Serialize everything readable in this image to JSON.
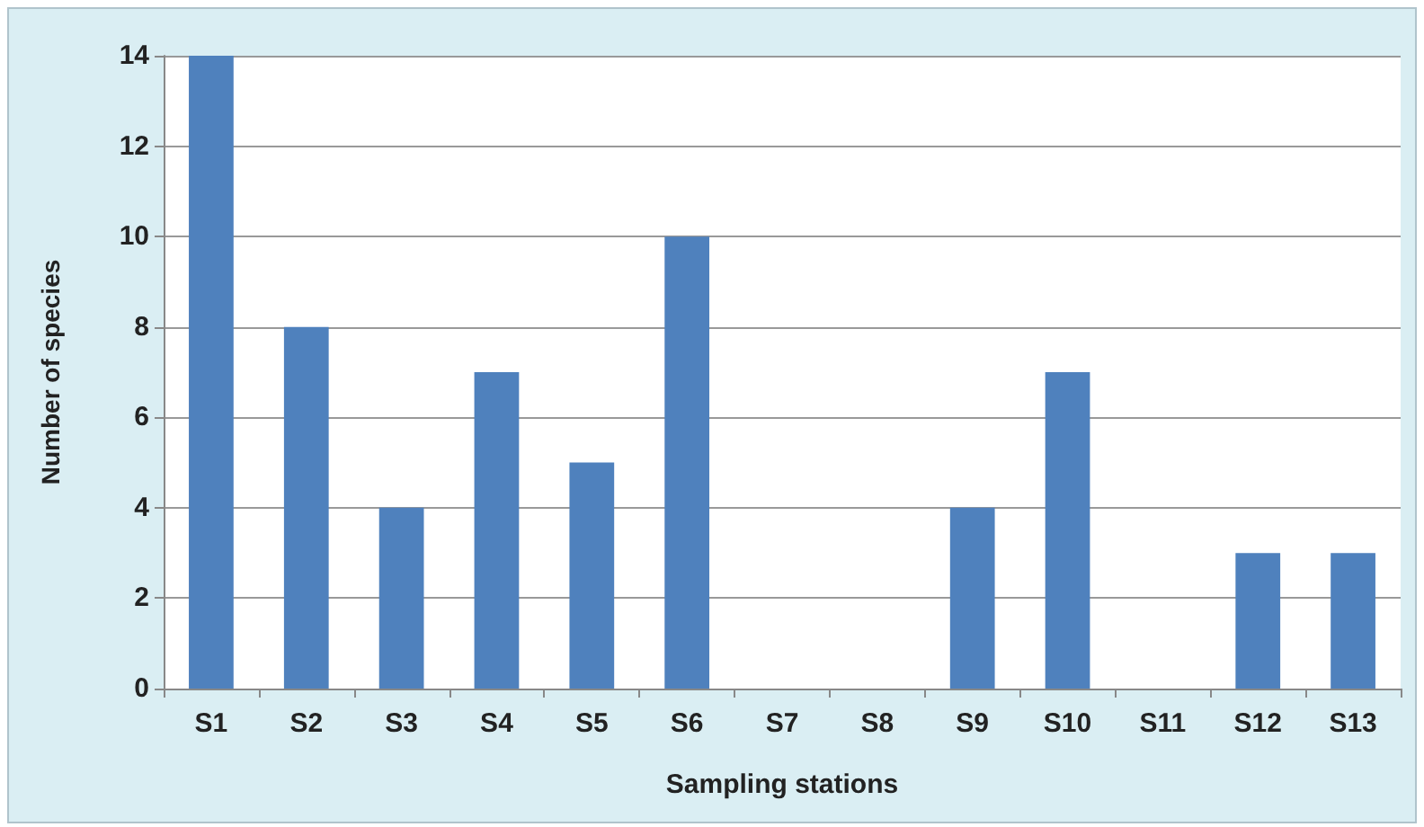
{
  "chart_data": {
    "type": "bar",
    "xlabel": "Sampling stations",
    "ylabel": "Number of species",
    "categories": [
      "S1",
      "S2",
      "S3",
      "S4",
      "S5",
      "S6",
      "S7",
      "S8",
      "S9",
      "S10",
      "S11",
      "S12",
      "S13"
    ],
    "values": [
      14,
      8,
      4,
      7,
      5,
      10,
      0,
      0,
      4,
      7,
      0,
      3,
      3
    ],
    "color": "#4f81bd",
    "ylim": [
      0,
      14
    ],
    "yticks": [
      0,
      2,
      4,
      6,
      8,
      10,
      12,
      14
    ],
    "grid": "y"
  }
}
